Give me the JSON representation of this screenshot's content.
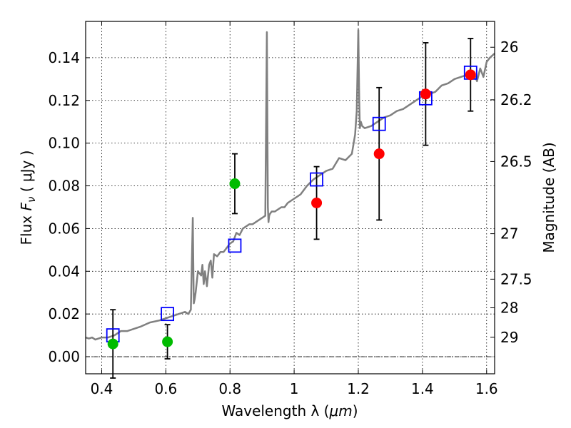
{
  "chart_data": {
    "type": "scatter",
    "xlabel_main": "Wavelength  λ (",
    "xlabel_unit": "μm",
    "xlabel_end": ")",
    "ylabel_flux": "Flux",
    "ylabel_fsym": "F",
    "ylabel_fsub": "ν",
    "ylabel_unit": "(  μJy )",
    "y2label": "Magnitude (AB)",
    "xlim": [
      0.35,
      1.625
    ],
    "ylim": [
      -0.008,
      0.157
    ],
    "grid": true,
    "x_ticks": [
      {
        "value": 0.4,
        "label": "0.4"
      },
      {
        "value": 0.6,
        "label": "0.6"
      },
      {
        "value": 0.8,
        "label": "0.8"
      },
      {
        "value": 1.0,
        "label": "1"
      },
      {
        "value": 1.2,
        "label": "1.2"
      },
      {
        "value": 1.4,
        "label": "1.4"
      },
      {
        "value": 1.6,
        "label": "1.6"
      }
    ],
    "y_ticks": [
      {
        "value": 0.0,
        "label": "0.00"
      },
      {
        "value": 0.02,
        "label": "0.02"
      },
      {
        "value": 0.04,
        "label": "0.04"
      },
      {
        "value": 0.06,
        "label": "0.06"
      },
      {
        "value": 0.08,
        "label": "0.08"
      },
      {
        "value": 0.1,
        "label": "0.10"
      },
      {
        "value": 0.12,
        "label": "0.12"
      },
      {
        "value": 0.14,
        "label": "0.14"
      }
    ],
    "y2_ticks": [
      {
        "flux": 0.1449,
        "label": "26"
      },
      {
        "flux": 0.1203,
        "label": "26.2"
      },
      {
        "flux": 0.0914,
        "label": "26.5"
      },
      {
        "flux": 0.0576,
        "label": "27"
      },
      {
        "flux": 0.0363,
        "label": "27.5"
      },
      {
        "flux": 0.0229,
        "label": "28"
      },
      {
        "flux": 0.0091,
        "label": "29"
      }
    ],
    "series": [
      {
        "kind": "spectrum",
        "color": "#808080",
        "x": [
          0.35,
          0.36,
          0.37,
          0.38,
          0.39,
          0.4,
          0.42,
          0.44,
          0.46,
          0.48,
          0.5,
          0.52,
          0.55,
          0.58,
          0.6,
          0.62,
          0.64,
          0.66,
          0.67,
          0.678,
          0.684,
          0.687,
          0.69,
          0.693,
          0.7,
          0.71,
          0.714,
          0.718,
          0.722,
          0.728,
          0.735,
          0.74,
          0.745,
          0.75,
          0.76,
          0.77,
          0.78,
          0.79,
          0.8,
          0.81,
          0.82,
          0.83,
          0.84,
          0.85,
          0.86,
          0.87,
          0.88,
          0.89,
          0.9,
          0.91,
          0.915,
          0.918,
          0.92,
          0.922,
          0.925,
          0.93,
          0.94,
          0.95,
          0.96,
          0.97,
          0.98,
          1.0,
          1.02,
          1.04,
          1.06,
          1.08,
          1.1,
          1.12,
          1.14,
          1.16,
          1.18,
          1.19,
          1.195,
          1.2,
          1.203,
          1.205,
          1.208,
          1.212,
          1.22,
          1.24,
          1.26,
          1.28,
          1.3,
          1.32,
          1.34,
          1.36,
          1.38,
          1.4,
          1.42,
          1.44,
          1.46,
          1.48,
          1.5,
          1.52,
          1.54,
          1.56,
          1.57,
          1.58,
          1.59,
          1.6,
          1.61,
          1.625
        ],
        "y": [
          0.009,
          0.0085,
          0.009,
          0.008,
          0.0085,
          0.009,
          0.009,
          0.01,
          0.012,
          0.012,
          0.013,
          0.014,
          0.016,
          0.017,
          0.018,
          0.019,
          0.02,
          0.021,
          0.02,
          0.022,
          0.065,
          0.025,
          0.027,
          0.03,
          0.04,
          0.038,
          0.043,
          0.034,
          0.04,
          0.033,
          0.043,
          0.045,
          0.037,
          0.048,
          0.047,
          0.049,
          0.049,
          0.051,
          0.053,
          0.054,
          0.058,
          0.057,
          0.06,
          0.061,
          0.062,
          0.062,
          0.063,
          0.064,
          0.065,
          0.066,
          0.152,
          0.07,
          0.063,
          0.066,
          0.067,
          0.068,
          0.068,
          0.069,
          0.07,
          0.07,
          0.072,
          0.074,
          0.076,
          0.08,
          0.083,
          0.085,
          0.087,
          0.088,
          0.093,
          0.092,
          0.095,
          0.104,
          0.115,
          0.153,
          0.12,
          0.107,
          0.11,
          0.108,
          0.107,
          0.108,
          0.11,
          0.112,
          0.113,
          0.115,
          0.116,
          0.118,
          0.12,
          0.122,
          0.123,
          0.124,
          0.127,
          0.128,
          0.13,
          0.131,
          0.132,
          0.133,
          0.129,
          0.135,
          0.131,
          0.138,
          0.14,
          0.142
        ]
      },
      {
        "kind": "open-squares",
        "color": "#0000ff",
        "x": [
          0.435,
          0.605,
          0.815,
          1.07,
          1.265,
          1.41,
          1.55
        ],
        "y": [
          0.01,
          0.02,
          0.052,
          0.083,
          0.109,
          0.121,
          0.133
        ]
      },
      {
        "kind": "points",
        "color": "#00bb00",
        "x": [
          0.435,
          0.605,
          0.815
        ],
        "y": [
          0.006,
          0.007,
          0.081
        ],
        "err": [
          0.016,
          0.008,
          0.014
        ]
      },
      {
        "kind": "points",
        "color": "#ff0000",
        "x": [
          1.07,
          1.265,
          1.41,
          1.55
        ],
        "y": [
          0.072,
          0.095,
          0.123,
          0.132
        ],
        "err": [
          0.017,
          0.031,
          0.024,
          0.017
        ]
      }
    ]
  }
}
